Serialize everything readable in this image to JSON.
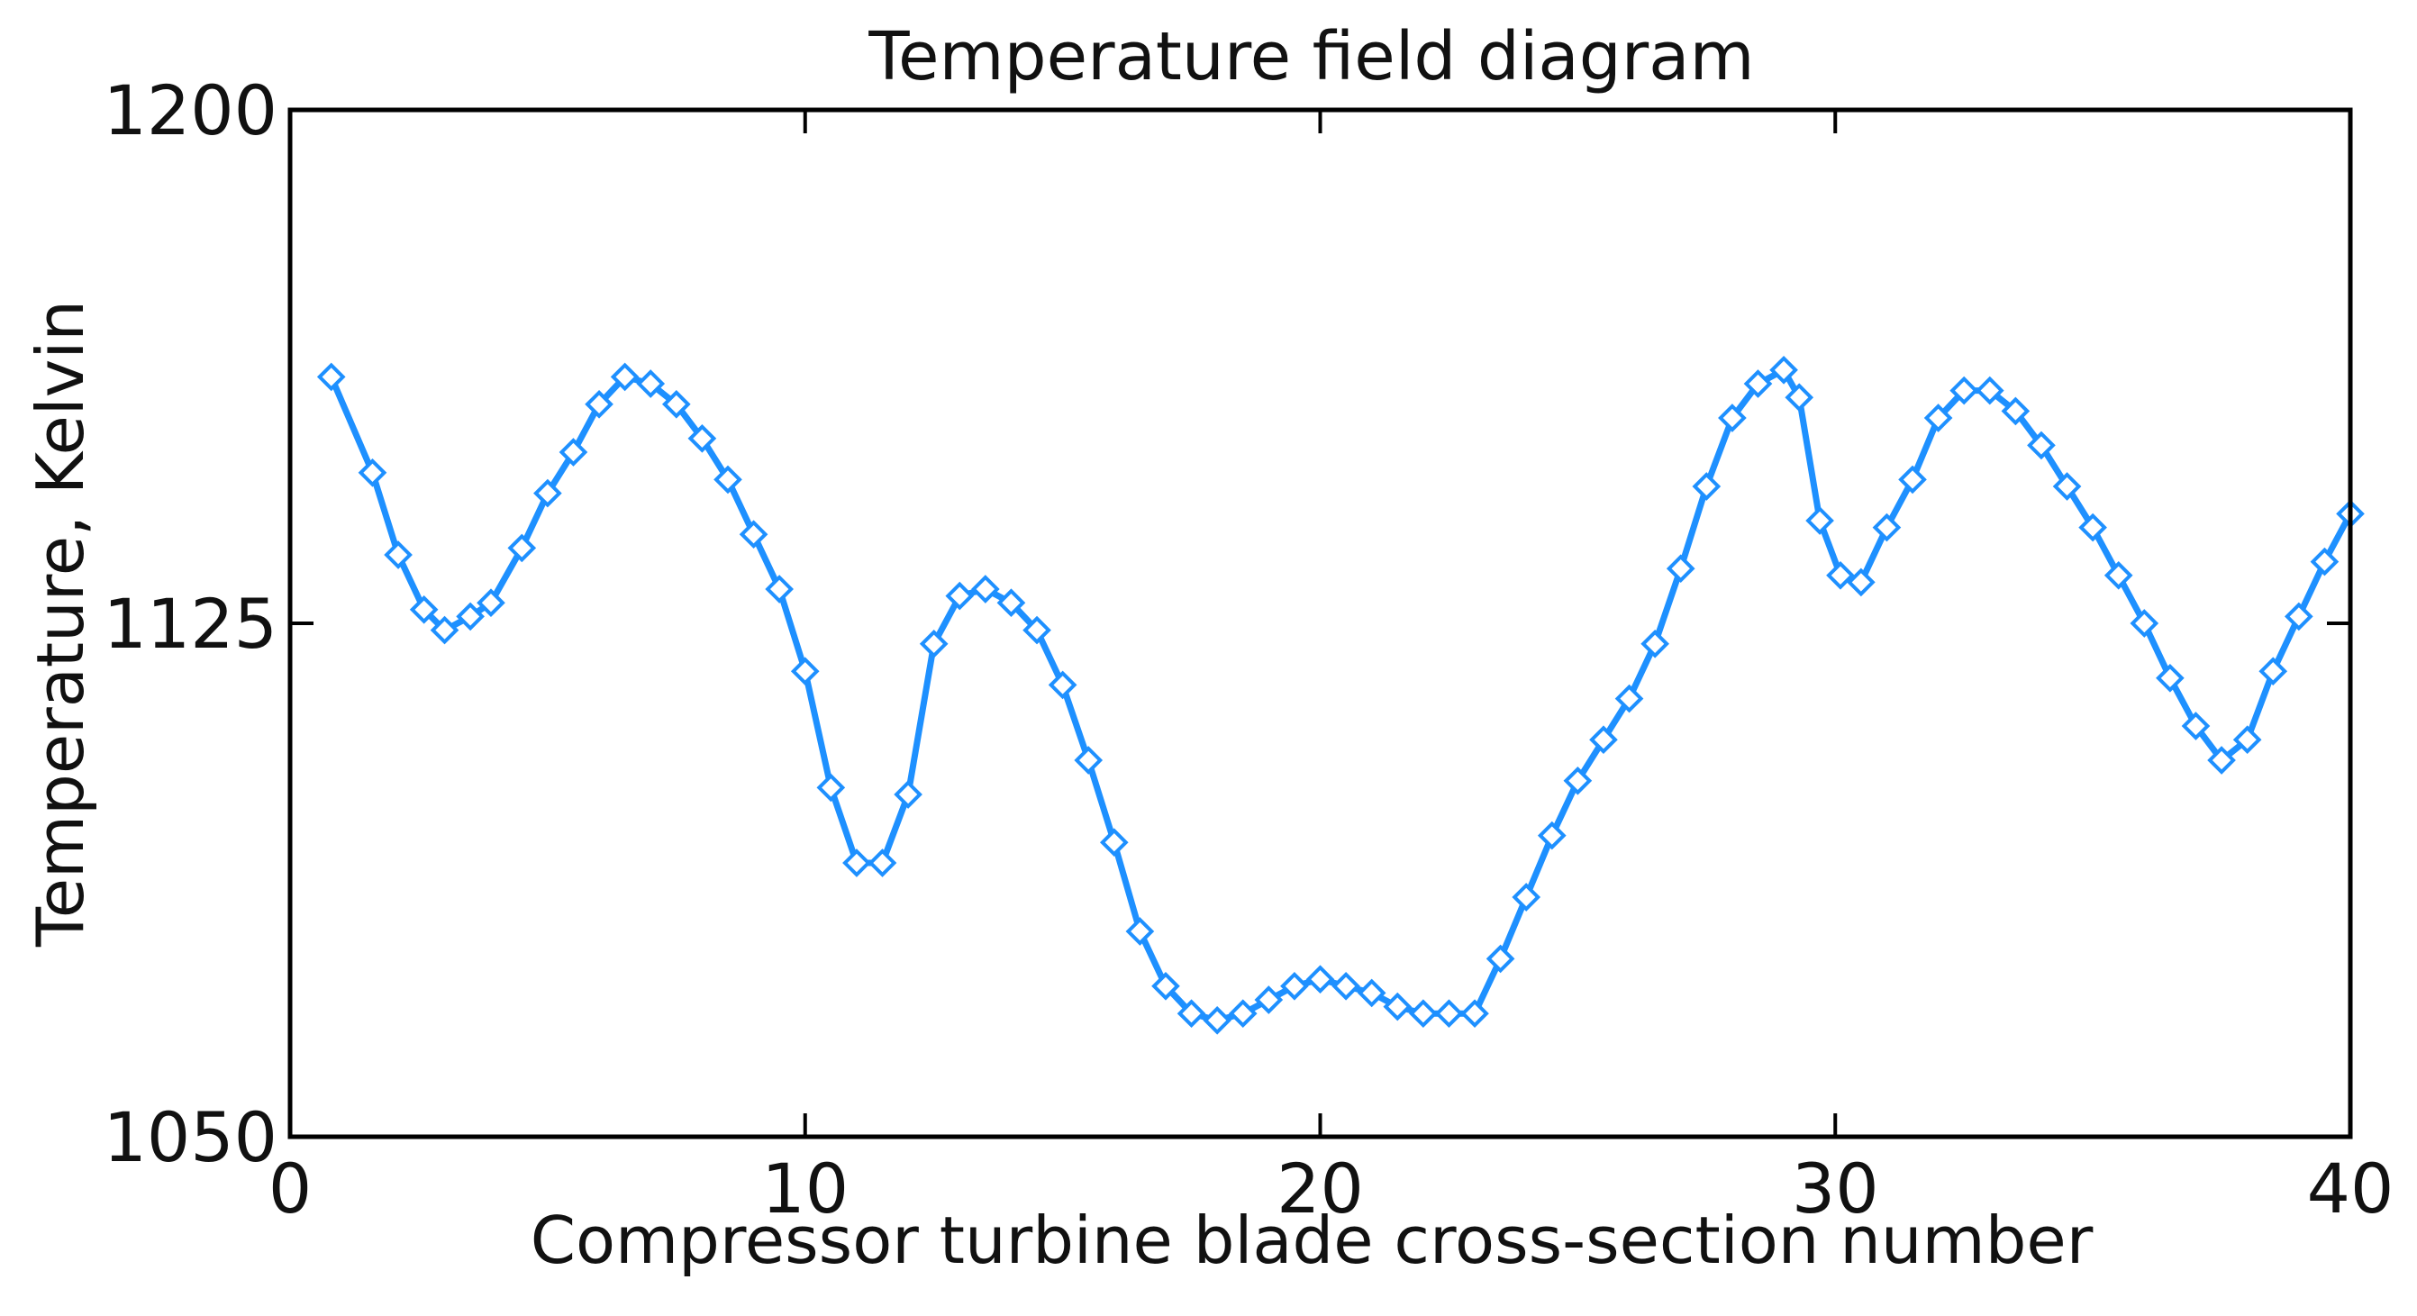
{
  "chart_data": {
    "type": "line",
    "title": "Temperature field diagram",
    "xlabel": "Compressor turbine blade cross-section number",
    "ylabel": "Temperature, Kelvin",
    "xlim": [
      0,
      40
    ],
    "ylim": [
      1050,
      1200
    ],
    "xticks": [
      0,
      10,
      20,
      30,
      40
    ],
    "xtick_labels": [
      "0",
      "10",
      "20",
      "30",
      "40"
    ],
    "yticks": [
      1050,
      1125,
      1200
    ],
    "ytick_labels": [
      "1050",
      "1125",
      "1200"
    ],
    "grid": false,
    "series": [
      {
        "color": "#1e90ff",
        "marker": "diamond",
        "x": [
          0.8,
          1.6,
          2.1,
          2.6,
          3.0,
          3.5,
          3.9,
          4.5,
          5.0,
          5.5,
          6.0,
          6.5,
          7.0,
          7.5,
          8.0,
          8.5,
          9.0,
          9.5,
          10.0,
          10.5,
          11.0,
          11.5,
          12.0,
          12.5,
          13.0,
          13.5,
          14.0,
          14.5,
          15.0,
          15.5,
          16.0,
          16.5,
          17.0,
          17.5,
          18.0,
          18.5,
          19.0,
          19.5,
          20.0,
          20.5,
          21.0,
          21.5,
          22.0,
          22.5,
          23.0,
          23.5,
          24.0,
          24.5,
          25.0,
          25.5,
          26.0,
          26.5,
          27.0,
          27.5,
          28.0,
          28.5,
          29.0,
          29.3,
          29.7,
          30.1,
          30.5,
          31.0,
          31.5,
          32.0,
          32.5,
          33.0,
          33.5,
          34.0,
          34.5,
          35.0,
          35.5,
          36.0,
          36.5,
          37.0,
          37.5,
          38.0,
          38.5,
          39.0,
          39.5,
          40.0
        ],
        "y": [
          1161,
          1147,
          1135,
          1127,
          1124,
          1126,
          1128,
          1136,
          1144,
          1150,
          1157,
          1161,
          1160,
          1157,
          1152,
          1146,
          1138,
          1130,
          1118,
          1101,
          1090,
          1090,
          1100,
          1122,
          1129,
          1130,
          1128,
          1124,
          1116,
          1105,
          1093,
          1080,
          1072,
          1068,
          1067,
          1068,
          1070,
          1072,
          1073,
          1072,
          1071,
          1069,
          1068,
          1068,
          1068,
          1076,
          1085,
          1094,
          1102,
          1108,
          1114,
          1122,
          1133,
          1145,
          1155,
          1160,
          1162,
          1158,
          1140,
          1132,
          1131,
          1139,
          1146,
          1155,
          1159,
          1159,
          1156,
          1151,
          1145,
          1139,
          1132,
          1125,
          1117,
          1110,
          1105,
          1108,
          1118,
          1126,
          1134,
          1141
        ]
      }
    ]
  }
}
